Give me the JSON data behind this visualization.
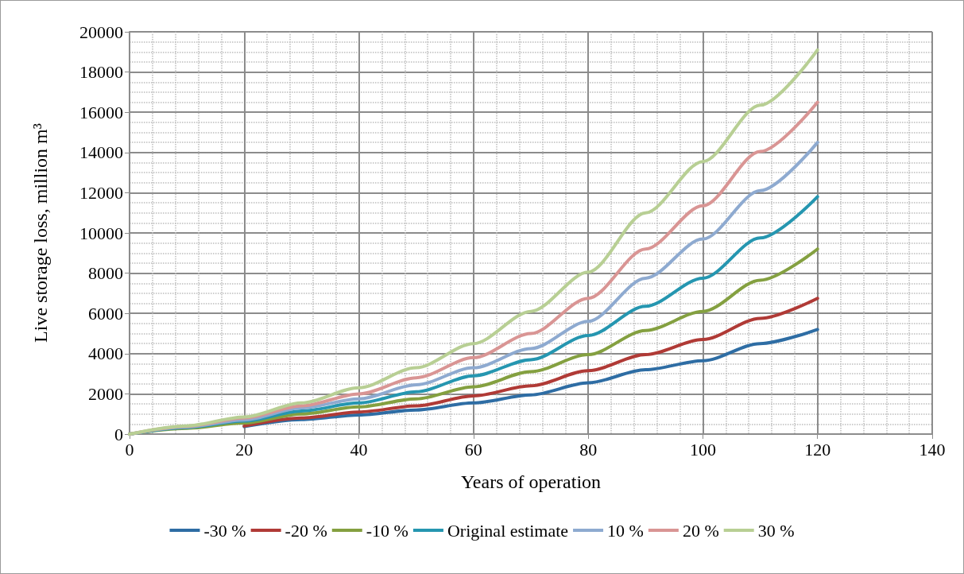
{
  "chart_data": {
    "type": "line",
    "xlabel": "Years of operation",
    "ylabel": "Live storage loss, million m³",
    "x": [
      0,
      10,
      20,
      30,
      40,
      50,
      60,
      70,
      80,
      90,
      100,
      110,
      120
    ],
    "xlim": [
      0,
      140
    ],
    "xticks": [
      0,
      20,
      40,
      60,
      80,
      100,
      120,
      140
    ],
    "ylim": [
      0,
      20000
    ],
    "yticks": [
      0,
      2000,
      4000,
      6000,
      8000,
      10000,
      12000,
      14000,
      16000,
      18000,
      20000
    ],
    "grid": true,
    "legend": "bottom",
    "marker": "none",
    "line_style": "solid",
    "series": [
      {
        "name": "-30 %",
        "color": "#2e6da4",
        "values": [
          null,
          null,
          370,
          720,
          950,
          1200,
          1550,
          1950,
          2550,
          3200,
          3650,
          4500,
          5200
        ]
      },
      {
        "name": "-20 %",
        "color": "#b03a36",
        "values": [
          null,
          null,
          400,
          800,
          1100,
          1400,
          1900,
          2400,
          3150,
          3950,
          4700,
          5750,
          6750
        ]
      },
      {
        "name": "-10 %",
        "color": "#84a040",
        "values": [
          0,
          290,
          550,
          1000,
          1350,
          1750,
          2350,
          3100,
          3950,
          5150,
          6100,
          7650,
          9200
        ]
      },
      {
        "name": "Original estimate",
        "color": "#2596b0",
        "values": [
          0,
          330,
          650,
          1150,
          1550,
          2100,
          2900,
          3700,
          4900,
          6350,
          7750,
          9750,
          11800
        ]
      },
      {
        "name": "10 %",
        "color": "#8eaad0",
        "values": [
          0,
          360,
          700,
          1300,
          1750,
          2450,
          3300,
          4250,
          5600,
          7750,
          9700,
          12100,
          14500
        ]
      },
      {
        "name": "20 %",
        "color": "#d99594",
        "values": [
          0,
          390,
          800,
          1400,
          2000,
          2800,
          3800,
          5000,
          6750,
          9200,
          11350,
          14050,
          16500
        ]
      },
      {
        "name": "30 %",
        "color": "#b8cf94",
        "values": [
          0,
          410,
          850,
          1550,
          2300,
          3300,
          4500,
          6100,
          8050,
          11000,
          13550,
          16350,
          19100
        ]
      }
    ]
  }
}
